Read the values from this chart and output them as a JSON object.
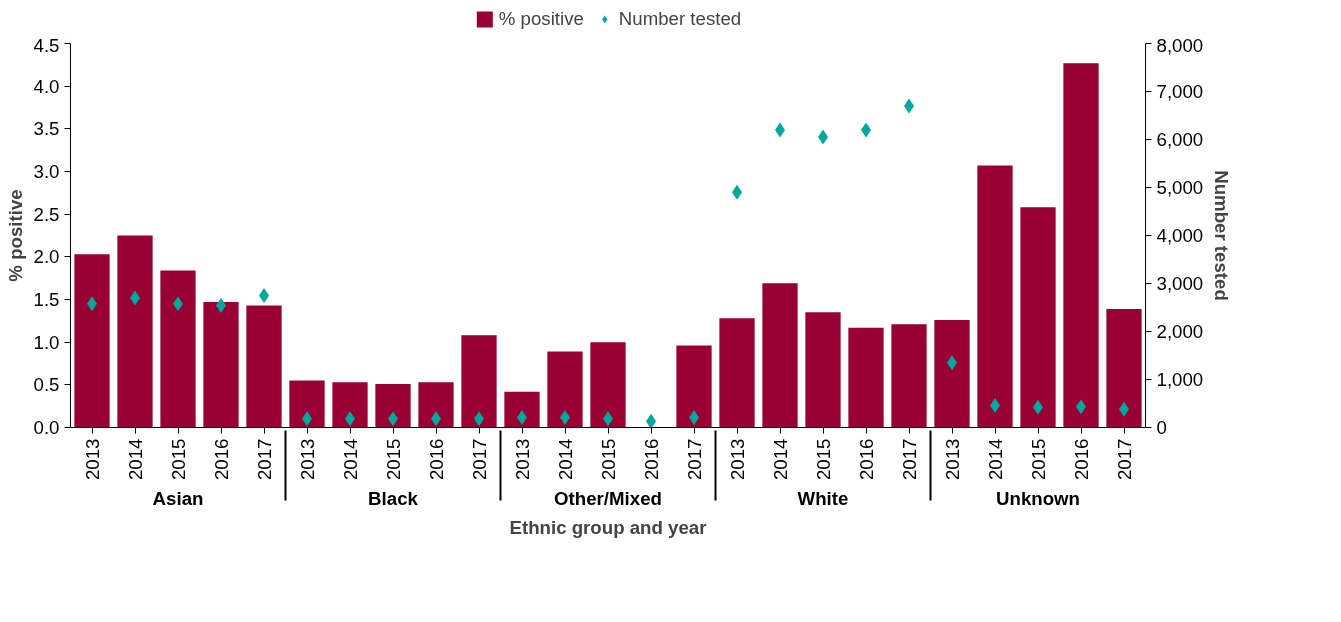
{
  "chart_data": {
    "type": "bar",
    "xlabel": "Ethnic group and year",
    "ylabel": "% positive",
    "y2label": "Number tested",
    "categories": [
      "2013",
      "2014",
      "2015",
      "2016",
      "2017",
      "2013",
      "2014",
      "2015",
      "2016",
      "2017",
      "2013",
      "2014",
      "2015",
      "2016",
      "2017",
      "2013",
      "2014",
      "2015",
      "2016",
      "2017",
      "2013",
      "2014",
      "2015",
      "2016",
      "2017"
    ],
    "annotations": [
      "Asian",
      "Black",
      "Other/Mixed",
      "White",
      "Unknown"
    ],
    "series": [
      {
        "name": "% positive",
        "color": "#990033",
        "values": [
          2.03,
          2.25,
          1.84,
          1.47,
          1.43,
          0.55,
          0.53,
          0.51,
          0.53,
          1.08,
          0.42,
          0.89,
          1.0,
          0,
          0.96,
          1.28,
          1.69,
          1.35,
          1.17,
          1.21,
          1.26,
          3.07,
          2.58,
          4.27,
          1.39
        ]
      },
      {
        "name": "Number tested",
        "type": "scatter",
        "axis": "y2",
        "marker": "diamond",
        "color": "#00a99d",
        "values": [
          2580,
          2700,
          2580,
          2540,
          2750,
          180,
          180,
          180,
          180,
          180,
          210,
          210,
          180,
          130,
          210,
          4900,
          6200,
          6050,
          6200,
          6700,
          1350,
          460,
          420,
          430,
          380
        ]
      }
    ],
    "ylim": [
      0,
      4.5
    ],
    "yticks": [
      {
        "value": 0,
        "label": "0.0"
      },
      {
        "value": 0.5,
        "label": "0.5"
      },
      {
        "value": 1,
        "label": "1.0"
      },
      {
        "value": 1.5,
        "label": "1.5"
      },
      {
        "value": 2,
        "label": "2.0"
      },
      {
        "value": 2.5,
        "label": "2.5"
      },
      {
        "value": 3,
        "label": "3.0"
      },
      {
        "value": 3.5,
        "label": "3.5"
      },
      {
        "value": 4,
        "label": "4.0"
      },
      {
        "value": 4.5,
        "label": "4.5"
      }
    ],
    "y2lim": [
      0,
      8000
    ],
    "y2ticks": [
      0,
      {
        "value": 1000,
        "label": "1,000"
      },
      {
        "value": 2000,
        "label": "2,000"
      },
      {
        "value": 3000,
        "label": "3,000"
      },
      {
        "value": 4000,
        "label": "4,000"
      },
      {
        "value": 5000,
        "label": "5,000"
      },
      {
        "value": 6000,
        "label": "6,000"
      },
      {
        "value": 7000,
        "label": "7,000"
      },
      {
        "value": 8000,
        "label": "8,000"
      }
    ],
    "legend": "top",
    "grid": false
  }
}
